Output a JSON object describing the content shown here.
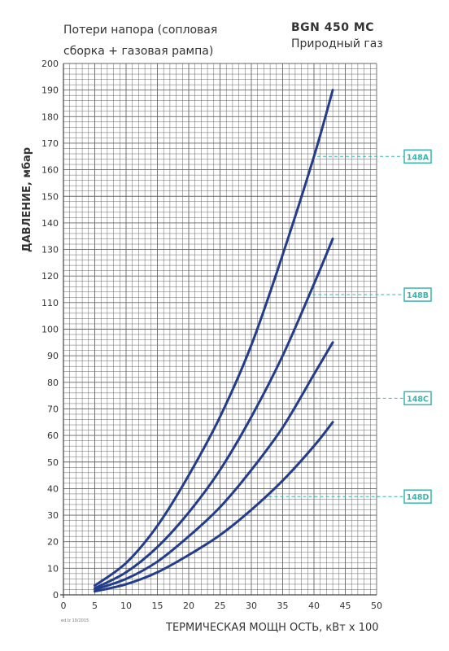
{
  "header": {
    "title_line1": "Потери напора (сопловая",
    "title_line2": "сборка + газовая рампа)",
    "model": "BGN 450 MC",
    "fuel": "Природный газ"
  },
  "footnote": "ed.lz 10/2015",
  "chart_data": {
    "type": "line",
    "ylabel": "ДАВЛЕНИЕ, мбар",
    "xlabel": "ТЕРМИЧЕСКАЯ МОЩН ОСТЬ, кВт х 100",
    "xlim": [
      0,
      50
    ],
    "ylim": [
      0,
      200
    ],
    "x_ticks": [
      0,
      5,
      10,
      15,
      20,
      25,
      30,
      35,
      40,
      45,
      50
    ],
    "y_ticks": [
      0,
      10,
      20,
      30,
      40,
      50,
      60,
      70,
      80,
      90,
      100,
      110,
      120,
      130,
      140,
      150,
      160,
      170,
      180,
      190,
      200
    ],
    "grid": true,
    "series": [
      {
        "name": "148A",
        "x": [
          5,
          10,
          15,
          20,
          25,
          30,
          35,
          40,
          43
        ],
        "y": [
          3.5,
          12,
          26,
          45,
          67,
          94,
          128,
          165,
          190
        ],
        "label_at_y": 165
      },
      {
        "name": "148B",
        "x": [
          5,
          10,
          15,
          20,
          25,
          30,
          35,
          40,
          43
        ],
        "y": [
          2.5,
          8.5,
          18,
          31,
          47,
          67,
          90,
          117,
          134
        ],
        "label_at_y": 113
      },
      {
        "name": "148C",
        "x": [
          5,
          10,
          15,
          20,
          25,
          30,
          35,
          40,
          43
        ],
        "y": [
          2,
          6,
          12.5,
          22,
          33,
          47,
          63,
          83,
          95
        ],
        "label_at_y": 74
      },
      {
        "name": "148D",
        "x": [
          5,
          10,
          15,
          20,
          25,
          30,
          35,
          40,
          43
        ],
        "y": [
          1.3,
          4,
          8.5,
          15,
          22.5,
          32,
          43,
          56,
          65
        ],
        "label_at_y": 37
      }
    ],
    "colors": {
      "line": "#233c8c",
      "grid": "#666666",
      "label": "#38b5ad"
    }
  }
}
